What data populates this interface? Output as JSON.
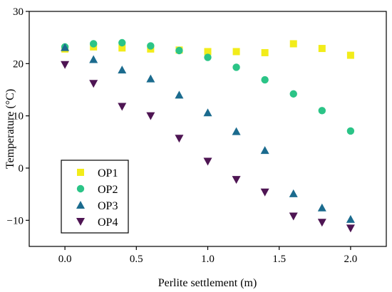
{
  "chart_data": {
    "type": "scatter",
    "xlabel": "Perlite settlement (m)",
    "ylabel": "Temperature (°C)",
    "xlim": [
      -0.25,
      2.25
    ],
    "ylim": [
      -15,
      30
    ],
    "xticks": [
      0.0,
      0.5,
      1.0,
      1.5,
      2.0
    ],
    "xtick_labels": [
      "0.0",
      "0.5",
      "1.0",
      "1.5",
      "2.0"
    ],
    "yticks": [
      -10,
      0,
      10,
      20,
      30
    ],
    "ytick_labels": [
      "−10",
      "0",
      "10",
      "20",
      "30"
    ],
    "grid": false,
    "legend_position": "bottom-left",
    "x": [
      0.0,
      0.2,
      0.4,
      0.6,
      0.8,
      1.0,
      1.2,
      1.4,
      1.6,
      1.8,
      2.0
    ],
    "series": [
      {
        "name": "OP1",
        "marker": "square",
        "color": "#f2ec1a",
        "values": [
          22.8,
          23.2,
          23.0,
          22.8,
          22.6,
          22.3,
          22.3,
          22.1,
          23.8,
          22.9,
          21.6
        ]
      },
      {
        "name": "OP2",
        "marker": "circle",
        "color": "#2bc487",
        "values": [
          23.2,
          23.8,
          24.0,
          23.4,
          22.5,
          21.2,
          19.3,
          16.9,
          14.2,
          11.0,
          7.1
        ]
      },
      {
        "name": "OP3",
        "marker": "triangle-up",
        "color": "#1b6b8e",
        "values": [
          23.1,
          20.8,
          18.8,
          17.1,
          14.0,
          10.6,
          7.0,
          3.4,
          -4.9,
          -7.6,
          -9.8
        ]
      },
      {
        "name": "OP4",
        "marker": "triangle-down",
        "color": "#4e1553",
        "values": [
          19.8,
          16.2,
          11.8,
          10.0,
          5.7,
          1.3,
          -2.2,
          -4.6,
          -9.2,
          -10.4,
          -11.5
        ]
      }
    ]
  }
}
